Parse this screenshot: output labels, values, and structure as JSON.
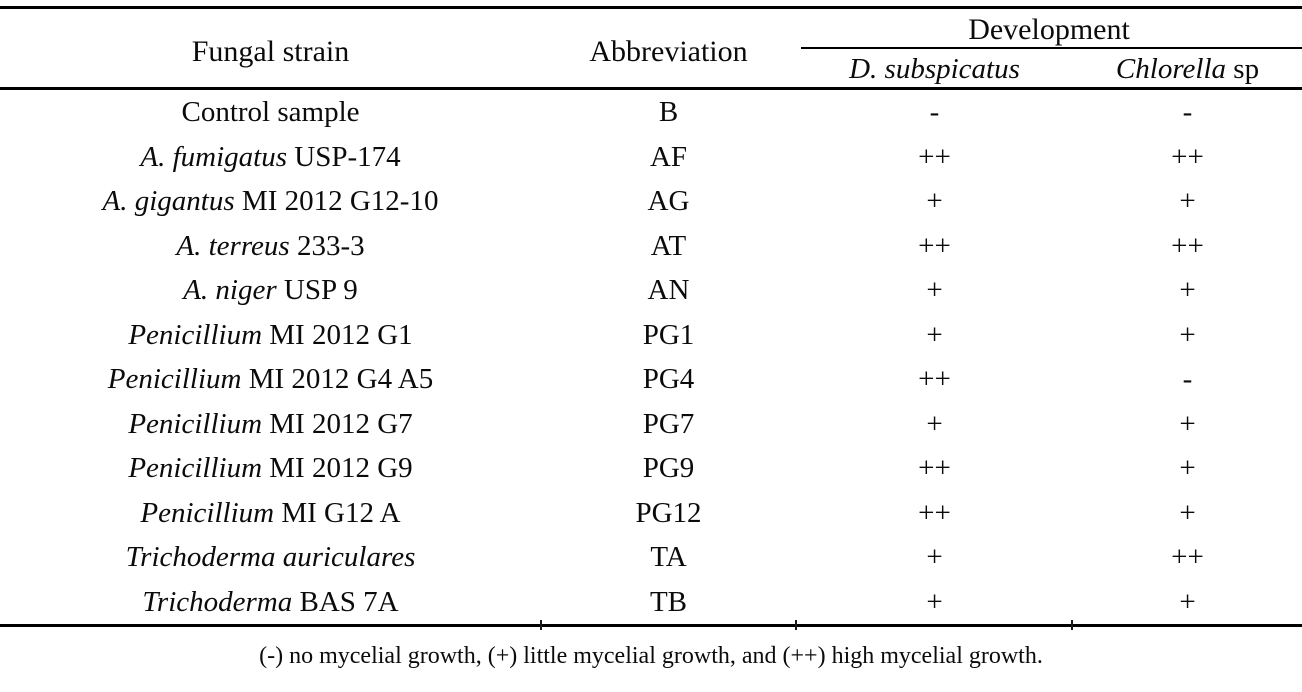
{
  "table": {
    "columns": {
      "strain": "Fungal strain",
      "abbreviation": "Abbreviation",
      "development": "Development",
      "sub1_italic": "D. subspicatus",
      "sub2_italic": "Chlorella",
      "sub2_regular": " sp"
    },
    "rows": [
      {
        "strain_italic": "",
        "strain_regular": "Control sample",
        "abbr": "B",
        "d_subspicatus": "-",
        "chlorella": "-"
      },
      {
        "strain_italic": "A. fumigatus",
        "strain_regular": " USP-174",
        "abbr": "AF",
        "d_subspicatus": "++",
        "chlorella": "++"
      },
      {
        "strain_italic": "A. gigantus",
        "strain_regular": " MI 2012 G12-10",
        "abbr": "AG",
        "d_subspicatus": "+",
        "chlorella": "+"
      },
      {
        "strain_italic": "A. terreus",
        "strain_regular": " 233-3",
        "abbr": "AT",
        "d_subspicatus": "++",
        "chlorella": "++"
      },
      {
        "strain_italic": "A. niger",
        "strain_regular": " USP 9",
        "abbr": "AN",
        "d_subspicatus": "+",
        "chlorella": "+"
      },
      {
        "strain_italic": "Penicillium",
        "strain_regular": " MI 2012 G1",
        "abbr": "PG1",
        "d_subspicatus": "+",
        "chlorella": "+"
      },
      {
        "strain_italic": "Penicillium",
        "strain_regular": " MI 2012 G4 A5",
        "abbr": "PG4",
        "d_subspicatus": "++",
        "chlorella": "-"
      },
      {
        "strain_italic": "Penicillium",
        "strain_regular": " MI 2012 G7",
        "abbr": "PG7",
        "d_subspicatus": "+",
        "chlorella": "+"
      },
      {
        "strain_italic": "Penicillium",
        "strain_regular": " MI 2012 G9",
        "abbr": "PG9",
        "d_subspicatus": "++",
        "chlorella": "+"
      },
      {
        "strain_italic": "Penicillium",
        "strain_regular": " MI G12 A",
        "abbr": "PG12",
        "d_subspicatus": "++",
        "chlorella": "+"
      },
      {
        "strain_italic": "Trichoderma auriculares",
        "strain_regular": "",
        "abbr": "TA",
        "d_subspicatus": "+",
        "chlorella": "++"
      },
      {
        "strain_italic": "Trichoderma",
        "strain_regular": " BAS 7A",
        "abbr": "TB",
        "d_subspicatus": "+",
        "chlorella": "+"
      }
    ],
    "footnote": "(-) no mycelial growth, (+) little mycelial growth, and (++) high mycelial growth."
  },
  "colors": {
    "text": "#0b0b0b",
    "rule": "#000000",
    "background": "#ffffff"
  }
}
